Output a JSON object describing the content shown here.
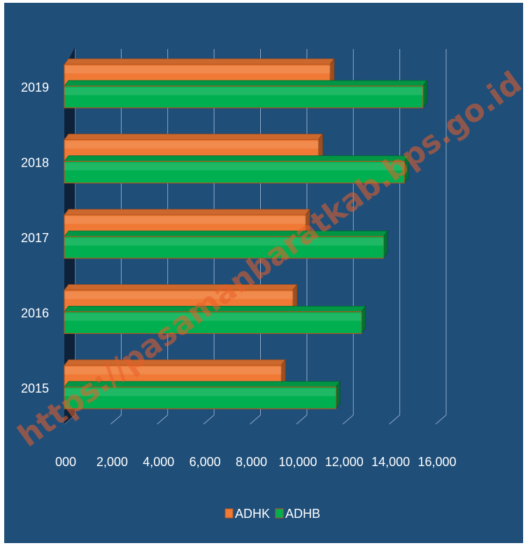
{
  "chart_data": {
    "type": "bar",
    "orientation": "horizontal",
    "categories": [
      "2015",
      "2016",
      "2017",
      "2018",
      "2019"
    ],
    "series": [
      {
        "name": "ADHK",
        "values": [
          9350,
          9850,
          10400,
          10950,
          11450
        ],
        "color": "#f07a35"
      },
      {
        "name": "ADHB",
        "values": [
          11700,
          12800,
          13750,
          14650,
          15450
        ],
        "color": "#00b050"
      }
    ],
    "xlim": [
      0,
      16000
    ],
    "xticks": [
      0,
      2000,
      4000,
      6000,
      8000,
      10000,
      12000,
      14000,
      16000
    ],
    "xtick_labels": [
      "000",
      "2,000",
      "4,000",
      "6,000",
      "8,000",
      "10,000",
      "12,000",
      "14,000",
      "16,000"
    ],
    "grid": true,
    "legend_position": "bottom",
    "background_color": "#1f4e79",
    "watermark": "https://pasamanbaratkab.bps.go.id"
  }
}
